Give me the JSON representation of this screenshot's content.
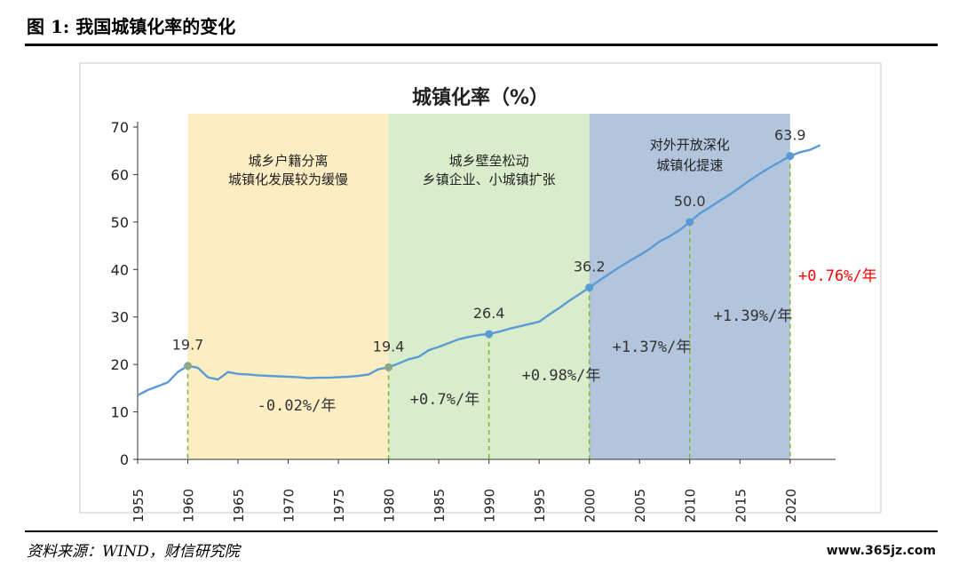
{
  "header": {
    "figure_title": "图 1:  我国城镇化率的变化"
  },
  "footer": {
    "source": "资料来源：WIND，财信研究院",
    "watermark": "www.365jz.com"
  },
  "colors": {
    "line": "#5b9bd5",
    "band1": "#fdedc3",
    "band2": "#d9eccc",
    "band3": "#b3c5dc",
    "dash": "#7dba3a",
    "highlight": "#ff0000"
  },
  "chart_data": {
    "type": "line",
    "title": "城镇化率（%）",
    "xlabel": "",
    "ylabel": "",
    "xlim": [
      1955,
      2024
    ],
    "ylim": [
      0,
      70
    ],
    "x_ticks": [
      "1955",
      "1960",
      "1965",
      "1970",
      "1975",
      "1980",
      "1985",
      "1990",
      "1995",
      "2000",
      "2005",
      "2010",
      "2015",
      "2020"
    ],
    "y_ticks": [
      "0",
      "10",
      "20",
      "30",
      "40",
      "50",
      "60",
      "70"
    ],
    "grid": false,
    "series": [
      {
        "name": "",
        "x": [
          1955,
          1956,
          1957,
          1958,
          1959,
          1960,
          1961,
          1962,
          1963,
          1964,
          1965,
          1966,
          1967,
          1968,
          1969,
          1970,
          1971,
          1972,
          1973,
          1974,
          1975,
          1976,
          1977,
          1978,
          1979,
          1980,
          1981,
          1982,
          1983,
          1984,
          1985,
          1986,
          1987,
          1988,
          1989,
          1990,
          1991,
          1992,
          1993,
          1994,
          1995,
          1996,
          1997,
          1998,
          1999,
          2000,
          2001,
          2002,
          2003,
          2004,
          2005,
          2006,
          2007,
          2008,
          2009,
          2010,
          2011,
          2012,
          2013,
          2014,
          2015,
          2016,
          2017,
          2018,
          2019,
          2020,
          2021,
          2022,
          2023
        ],
        "values": [
          13.5,
          14.6,
          15.4,
          16.2,
          18.4,
          19.7,
          19.3,
          17.3,
          16.8,
          18.4,
          18.0,
          17.9,
          17.7,
          17.6,
          17.5,
          17.4,
          17.3,
          17.1,
          17.2,
          17.2,
          17.3,
          17.4,
          17.6,
          17.9,
          19.0,
          19.4,
          20.2,
          21.1,
          21.6,
          23.0,
          23.7,
          24.5,
          25.3,
          25.8,
          26.2,
          26.4,
          26.9,
          27.5,
          28.0,
          28.5,
          29.0,
          30.5,
          31.9,
          33.4,
          34.8,
          36.2,
          37.7,
          39.1,
          40.5,
          41.8,
          43.0,
          44.3,
          45.9,
          47.0,
          48.3,
          50.0,
          51.8,
          53.1,
          54.5,
          55.8,
          57.3,
          58.8,
          60.2,
          61.5,
          62.7,
          63.9,
          64.7,
          65.2,
          66.2
        ]
      }
    ],
    "periods": [
      {
        "from": 1960,
        "to": 1980,
        "color": "#fdedc3",
        "label_lines": [
          "城乡户籍分离",
          "城镇化发展较为缓慢"
        ]
      },
      {
        "from": 1980,
        "to": 2000,
        "color": "#d9eccc",
        "label_lines": [
          "城乡壁垒松动",
          "乡镇企业、小城镇扩张"
        ]
      },
      {
        "from": 2000,
        "to": 2020,
        "color": "#b3c5dc",
        "label_lines": [
          "对外开放深化",
          "城镇化提速"
        ]
      }
    ],
    "markers": [
      {
        "x": 1960,
        "y": 19.7,
        "label": "19.7"
      },
      {
        "x": 1980,
        "y": 19.4,
        "label": "19.4"
      },
      {
        "x": 1990,
        "y": 26.4,
        "label": "26.4"
      },
      {
        "x": 2000,
        "y": 36.2,
        "label": "36.2"
      },
      {
        "x": 2010,
        "y": 50.0,
        "label": "50.0"
      },
      {
        "x": 2020,
        "y": 63.9,
        "label": "63.9"
      }
    ],
    "growth_annotations": [
      {
        "text": "-0.02%/年",
        "color": "#333333"
      },
      {
        "text": "+0.7%/年",
        "color": "#333333"
      },
      {
        "text": "+0.98%/年",
        "color": "#333333"
      },
      {
        "text": "+1.37%/年",
        "color": "#333333"
      },
      {
        "text": "+1.39%/年",
        "color": "#333333"
      },
      {
        "text": "+0.76%/年",
        "color": "#ff0000"
      }
    ]
  }
}
